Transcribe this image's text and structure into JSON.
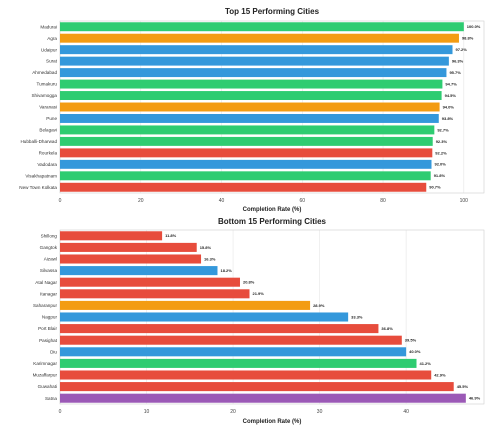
{
  "chart_data": [
    {
      "type": "bar",
      "orientation": "horizontal",
      "title": "Top 15 Performing Cities",
      "xlabel": "Completion Rate (%)",
      "xlim": [
        0,
        105
      ],
      "xticks": [
        0,
        20,
        40,
        60,
        80,
        100
      ],
      "grid": true,
      "categories": [
        "Madurai",
        "Agra",
        "Udaipur",
        "Surat",
        "Ahmedabad",
        "Tumakuru",
        "Shivamogga",
        "Varanasi",
        "Pune",
        "Belagavi",
        "Hubballi-Dharwad",
        "Rourkela",
        "Vadodara",
        "Visakhapatnam",
        "New Town Kolkata"
      ],
      "values": [
        100.0,
        98.8,
        97.2,
        96.3,
        95.7,
        94.7,
        94.5,
        94.0,
        93.8,
        92.7,
        92.3,
        92.2,
        92.0,
        91.8,
        90.7
      ],
      "labels": [
        "100.0%",
        "98.8%",
        "97.2%",
        "96.3%",
        "95.7%",
        "94.7%",
        "94.5%",
        "94.0%",
        "93.8%",
        "92.7%",
        "92.3%",
        "92.2%",
        "92.0%",
        "91.8%",
        "90.7%"
      ],
      "colors": [
        "#2ecc71",
        "#f39c12",
        "#3498db",
        "#3498db",
        "#3498db",
        "#2ecc71",
        "#2ecc71",
        "#f39c12",
        "#3498db",
        "#2ecc71",
        "#2ecc71",
        "#e74c3c",
        "#3498db",
        "#2ecc71",
        "#e74c3c"
      ]
    },
    {
      "type": "bar",
      "orientation": "horizontal",
      "title": "Bottom 15 Performing Cities",
      "xlabel": "Completion Rate (%)",
      "xlim": [
        0,
        49
      ],
      "xticks": [
        0,
        10,
        20,
        30,
        40
      ],
      "grid": true,
      "categories": [
        "Shillong",
        "Gangtok",
        "Aizawl",
        "Silvassa",
        "Atal Nagar",
        "Itanagar",
        "Saharanpur",
        "Nagpur",
        "Port Blair",
        "Pasighat",
        "Diu",
        "Karimnagar",
        "Muzaffarpur",
        "Guwahati",
        "Satna"
      ],
      "values": [
        11.8,
        15.8,
        16.3,
        18.2,
        20.8,
        21.9,
        28.9,
        33.3,
        36.8,
        39.5,
        40.0,
        41.2,
        42.9,
        45.5,
        46.9
      ],
      "labels": [
        "11.8%",
        "15.8%",
        "16.3%",
        "18.2%",
        "20.8%",
        "21.9%",
        "28.9%",
        "33.3%",
        "36.8%",
        "39.5%",
        "40.0%",
        "41.2%",
        "42.9%",
        "45.5%",
        "46.9%"
      ],
      "colors": [
        "#e74c3c",
        "#e74c3c",
        "#e74c3c",
        "#3498db",
        "#e74c3c",
        "#e74c3c",
        "#f39c12",
        "#3498db",
        "#e74c3c",
        "#e74c3c",
        "#3498db",
        "#2ecc71",
        "#e74c3c",
        "#e74c3c",
        "#9b59b6"
      ]
    }
  ]
}
